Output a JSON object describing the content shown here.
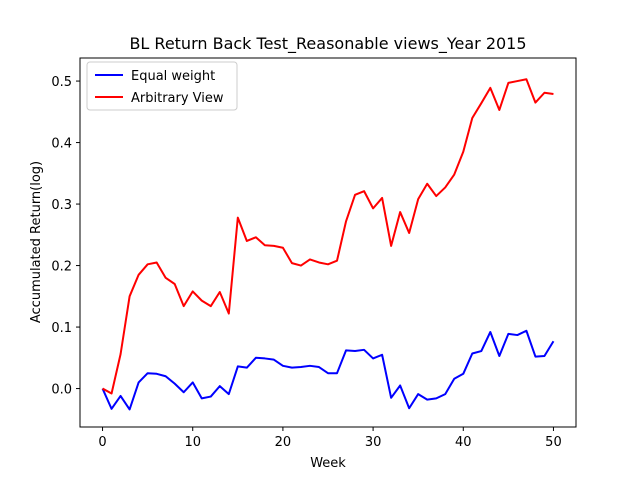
{
  "chart_data": {
    "type": "line",
    "title": "BL Return Back Test_Reasonable views_Year 2015",
    "xlabel": "Week",
    "ylabel": "Accumulated Return(log)",
    "xlim": [
      -2.5,
      52.5
    ],
    "ylim": [
      -0.0625,
      0.5375
    ],
    "xticks": [
      0,
      10,
      20,
      30,
      40,
      50
    ],
    "yticks": [
      0.0,
      0.1,
      0.2,
      0.3,
      0.4,
      0.5
    ],
    "xtick_labels": [
      "0",
      "10",
      "20",
      "30",
      "40",
      "50"
    ],
    "ytick_labels": [
      "0.0",
      "0.1",
      "0.2",
      "0.3",
      "0.4",
      "0.5"
    ],
    "grid": false,
    "legend_position": "top-left",
    "x": [
      0,
      1,
      2,
      3,
      4,
      5,
      6,
      7,
      8,
      9,
      10,
      11,
      12,
      13,
      14,
      15,
      16,
      17,
      18,
      19,
      20,
      21,
      22,
      23,
      24,
      25,
      26,
      27,
      28,
      29,
      30,
      31,
      32,
      33,
      34,
      35,
      36,
      37,
      38,
      39,
      40,
      41,
      42,
      43,
      44,
      45,
      46,
      47,
      48,
      49,
      50
    ],
    "series": [
      {
        "name": "Equal weight",
        "color": "#0000ff",
        "values": [
          0.0,
          -0.033,
          -0.012,
          -0.034,
          0.01,
          0.025,
          0.024,
          0.02,
          0.008,
          -0.006,
          0.01,
          -0.016,
          -0.013,
          0.004,
          -0.009,
          0.036,
          0.034,
          0.05,
          0.049,
          0.047,
          0.037,
          0.034,
          0.035,
          0.037,
          0.035,
          0.025,
          0.025,
          0.062,
          0.061,
          0.063,
          0.049,
          0.055,
          -0.015,
          0.005,
          -0.032,
          -0.009,
          -0.018,
          -0.016,
          -0.009,
          0.016,
          0.024,
          0.057,
          0.061,
          0.092,
          0.053,
          0.089,
          0.087,
          0.094,
          0.052,
          0.053,
          0.077
        ]
      },
      {
        "name": "Arbitrary View",
        "color": "#ff0000",
        "values": [
          0.0,
          -0.008,
          0.056,
          0.15,
          0.185,
          0.202,
          0.205,
          0.18,
          0.17,
          0.134,
          0.158,
          0.143,
          0.134,
          0.157,
          0.122,
          0.278,
          0.24,
          0.246,
          0.233,
          0.232,
          0.229,
          0.204,
          0.2,
          0.21,
          0.205,
          0.202,
          0.208,
          0.272,
          0.315,
          0.321,
          0.293,
          0.31,
          0.232,
          0.287,
          0.253,
          0.308,
          0.333,
          0.313,
          0.327,
          0.348,
          0.385,
          0.44,
          0.464,
          0.489,
          0.453,
          0.497,
          0.5,
          0.503,
          0.465,
          0.481,
          0.479
        ]
      }
    ]
  }
}
